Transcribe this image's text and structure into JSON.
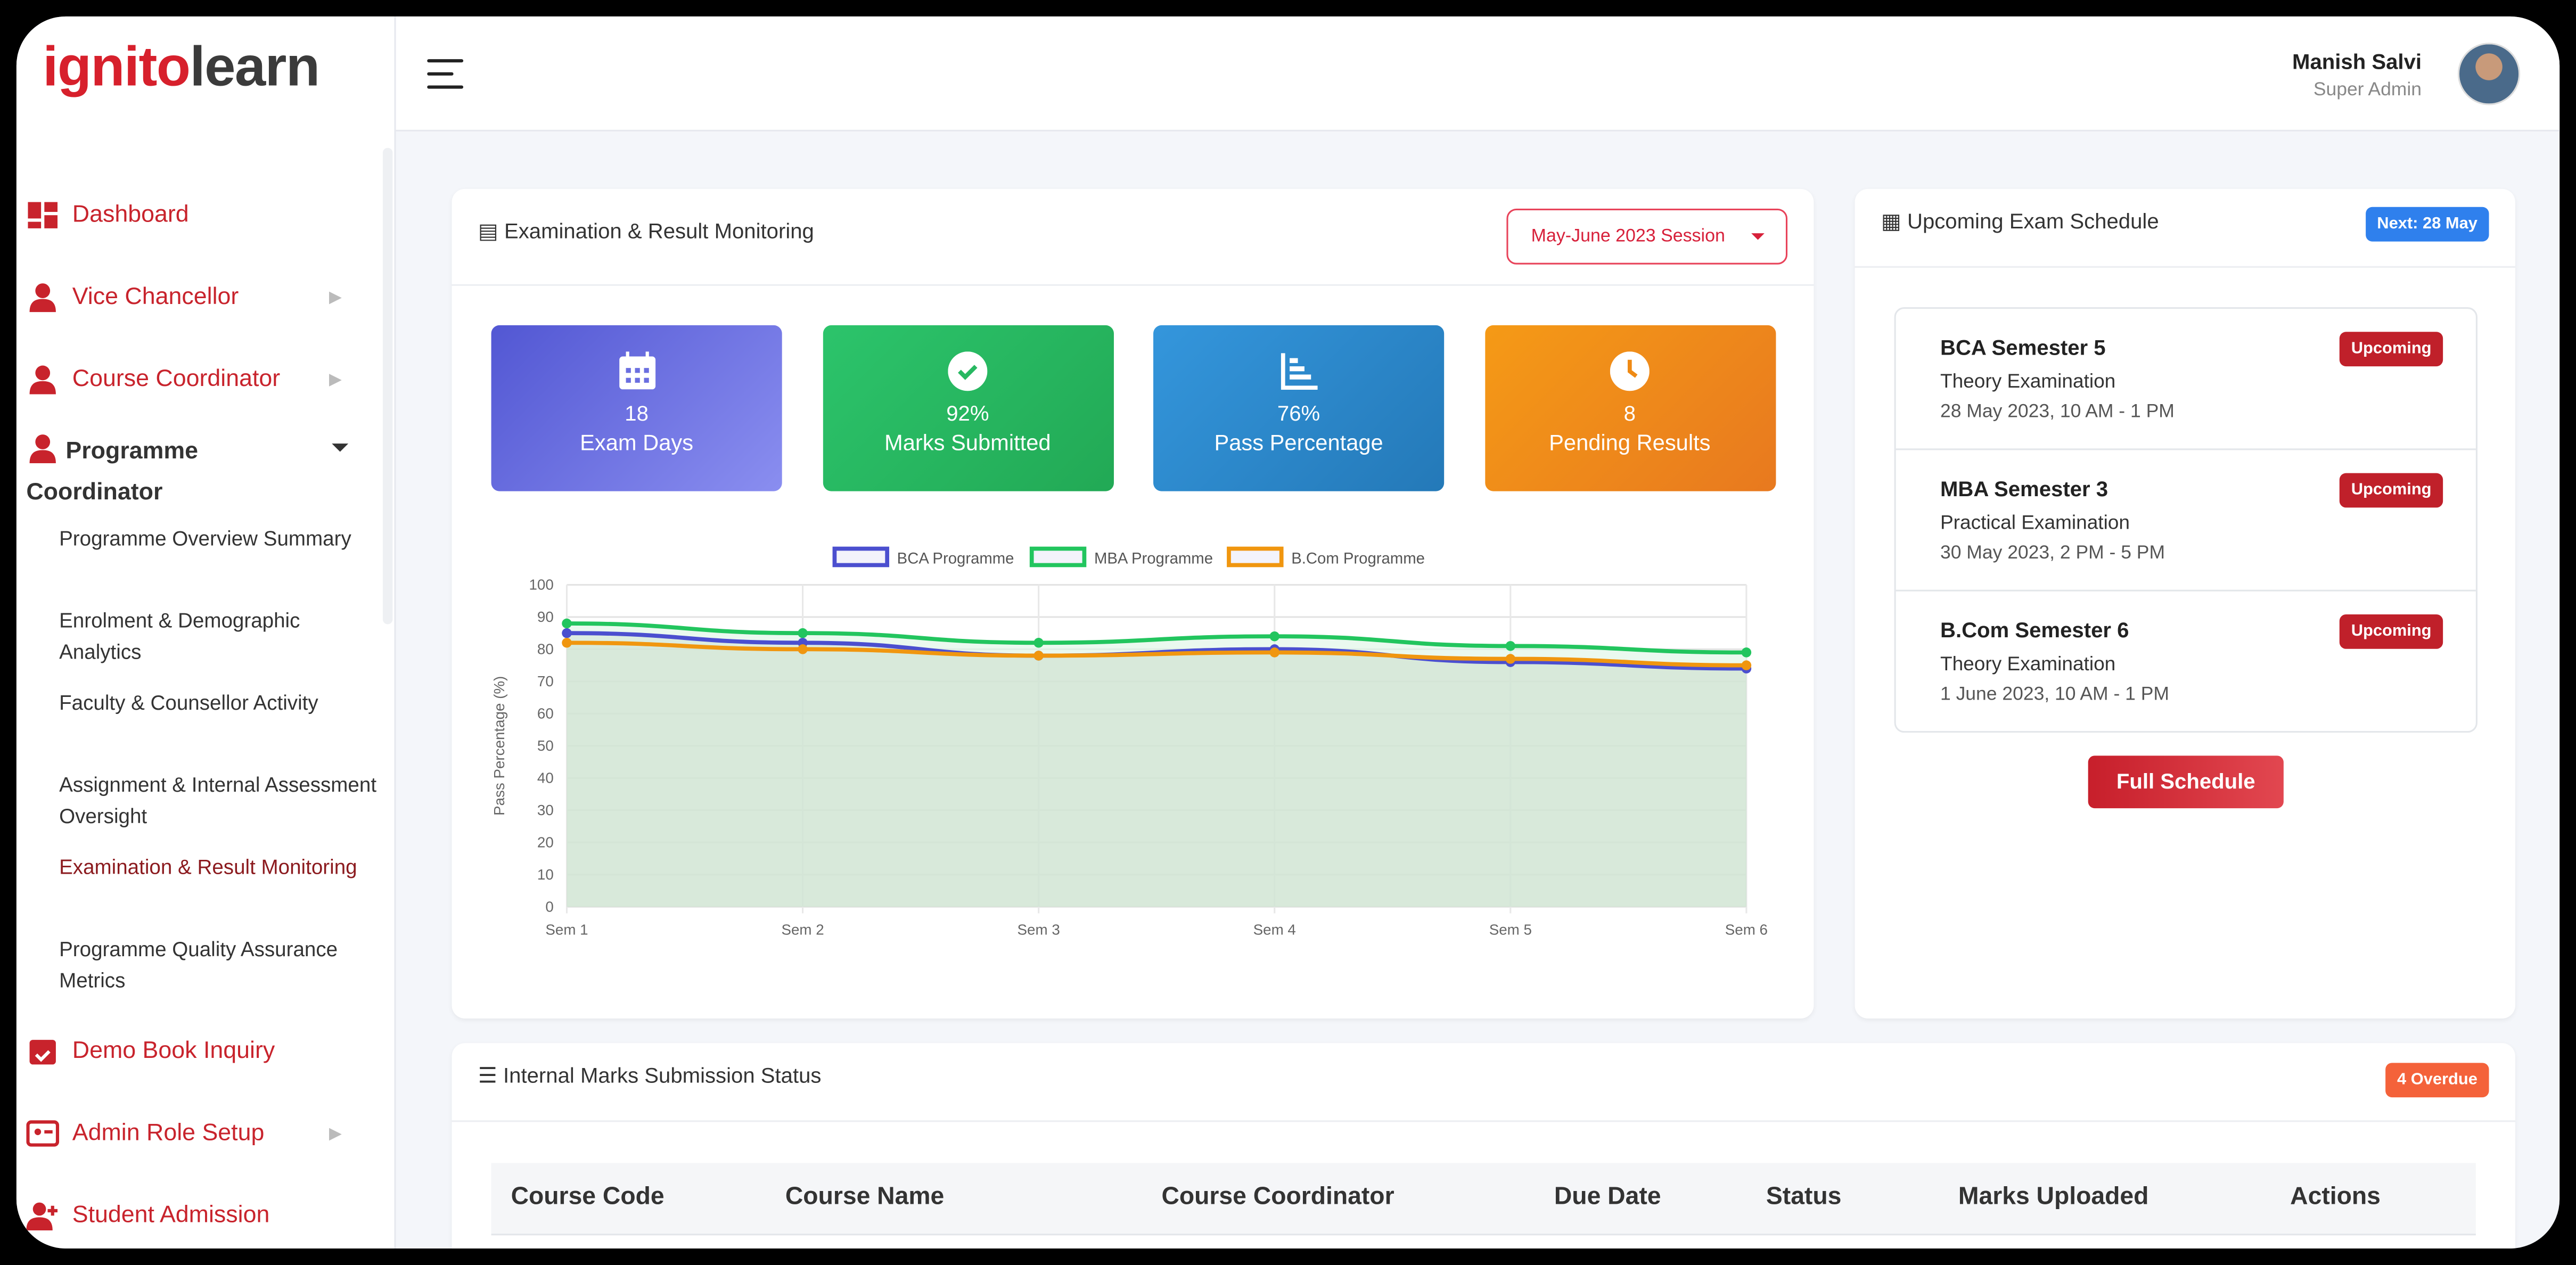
{
  "logo": {
    "part1": "ignito",
    "part2": "learn"
  },
  "sidebar": {
    "items": [
      {
        "label": "Dashboard",
        "icon": "dashboard-icon"
      },
      {
        "label": "Vice Chancellor",
        "icon": "user-icon",
        "arrow": true
      },
      {
        "label": "Course Coordinator",
        "icon": "user-icon",
        "arrow": true
      }
    ],
    "programme": {
      "label1": "Programme",
      "label2": "Coordinator"
    },
    "sub_items": [
      "Programme Overview Summary",
      "Enrolment & Demographic Analytics",
      "Faculty & Counsellor Activity",
      "Assignment & Internal Assessment Oversight",
      "Examination & Result Monitoring",
      "Programme Quality Assurance Metrics"
    ],
    "active_sub": 4,
    "items_after": [
      {
        "label": "Demo Book Inquiry",
        "icon": "calendar-check-icon"
      },
      {
        "label": "Admin Role Setup",
        "icon": "id-card-icon",
        "arrow": true
      },
      {
        "label": "Student Admission",
        "icon": "user-plus-icon"
      }
    ]
  },
  "header": {
    "user_name": "Manish Salvi",
    "user_role": "Super Admin"
  },
  "exam": {
    "title": "Examination & Result Monitoring",
    "session": "May-June 2023 Session",
    "stats": [
      {
        "value": "18",
        "label": "Exam Days",
        "icon": "calendar-icon",
        "color": "#5b5fd6"
      },
      {
        "value": "92%",
        "label": "Marks Submitted",
        "icon": "check-circle-icon",
        "color": "#27b861"
      },
      {
        "value": "76%",
        "label": "Pass Percentage",
        "icon": "bar-chart-icon",
        "color": "#2d8ad0"
      },
      {
        "value": "8",
        "label": "Pending Results",
        "icon": "clock-icon",
        "color": "#ef8a14"
      }
    ]
  },
  "chart_data": {
    "type": "line",
    "categories": [
      "Sem 1",
      "Sem 2",
      "Sem 3",
      "Sem 4",
      "Sem 5",
      "Sem 6"
    ],
    "ylabel": "Pass Percentage (%)",
    "ylim": [
      0,
      100
    ],
    "yticks": [
      0,
      10,
      20,
      30,
      40,
      50,
      60,
      70,
      80,
      90,
      100
    ],
    "grid": true,
    "legend": "top",
    "series": [
      {
        "name": "BCA Programme",
        "color": "#4b4fcf",
        "values": [
          85,
          82,
          78,
          80,
          76,
          74
        ]
      },
      {
        "name": "MBA Programme",
        "color": "#22c55e",
        "values": [
          88,
          85,
          82,
          84,
          81,
          79
        ]
      },
      {
        "name": "B.Com Programme",
        "color": "#f0960f",
        "values": [
          82,
          80,
          78,
          79,
          77,
          75
        ]
      }
    ]
  },
  "schedule": {
    "title": "Upcoming Exam Schedule",
    "next_badge": "Next: 28 May",
    "exams": [
      {
        "title": "BCA Semester 5",
        "type": "Theory Examination",
        "date": "28 May 2023, 10 AM - 1 PM",
        "status": "Upcoming"
      },
      {
        "title": "MBA Semester 3",
        "type": "Practical Examination",
        "date": "30 May 2023, 2 PM - 5 PM",
        "status": "Upcoming"
      },
      {
        "title": "B.Com Semester 6",
        "type": "Theory Examination",
        "date": "1 June 2023, 10 AM - 1 PM",
        "status": "Upcoming"
      }
    ],
    "full_button": "Full Schedule"
  },
  "internal": {
    "title": "Internal Marks Submission Status",
    "overdue": "4 Overdue",
    "columns": [
      "Course Code",
      "Course Name",
      "Course Coordinator",
      "Due Date",
      "Status",
      "Marks Uploaded",
      "Actions"
    ]
  }
}
